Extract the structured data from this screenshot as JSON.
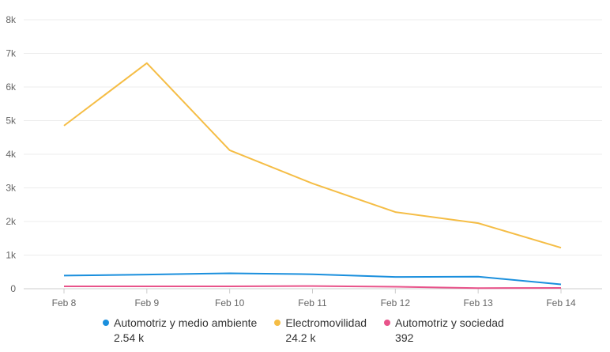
{
  "chart_data": {
    "type": "line",
    "categories": [
      "Feb 8",
      "Feb 9",
      "Feb 10",
      "Feb 11",
      "Feb 12",
      "Feb 13",
      "Feb 14"
    ],
    "ylim": [
      0,
      8000
    ],
    "yticks": [
      0,
      1000,
      2000,
      3000,
      4000,
      5000,
      6000,
      7000,
      8000
    ],
    "ytick_labels": [
      "0",
      "1k",
      "2k",
      "3k",
      "4k",
      "5k",
      "6k",
      "7k",
      "8k"
    ],
    "grid": true,
    "legend_position": "bottom",
    "series": [
      {
        "name": "Automotriz y medio ambiente",
        "total": "2.54 k",
        "color": "#1a8fdd",
        "values": [
          390,
          420,
          460,
          430,
          350,
          360,
          130
        ]
      },
      {
        "name": "Electromovilidad",
        "total": "24.2 k",
        "color": "#f5bd45",
        "values": [
          4850,
          6710,
          4120,
          3130,
          2280,
          1950,
          1220
        ]
      },
      {
        "name": "Automotriz y sociedad",
        "total": "392",
        "color": "#e8538a",
        "values": [
          70,
          70,
          70,
          80,
          60,
          17,
          25
        ]
      }
    ]
  }
}
